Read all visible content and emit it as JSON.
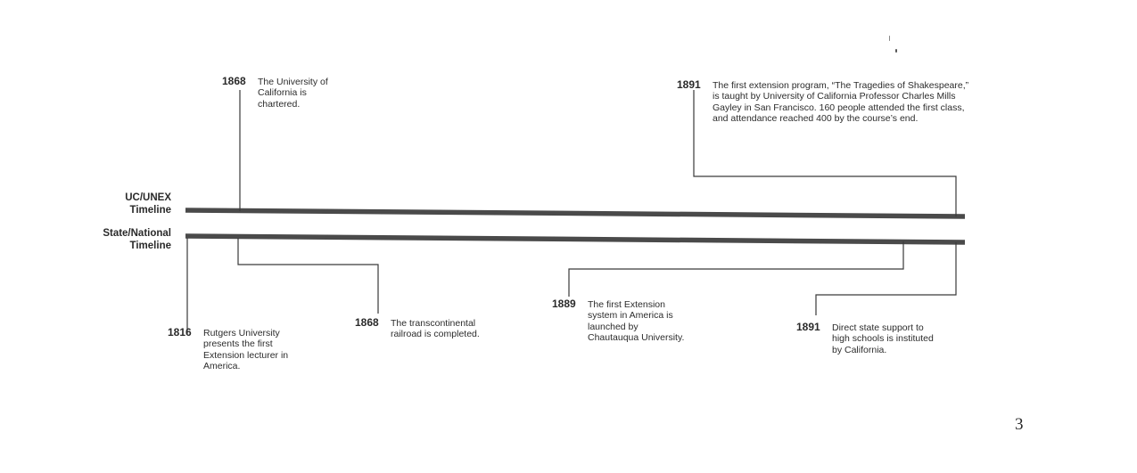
{
  "timelines": {
    "uc_unex": "UC/UNEX\nTimeline",
    "state_national": "State/National\nTimeline"
  },
  "events": {
    "uc_1868": {
      "year": "1868",
      "text": "The University of California is chartered."
    },
    "uc_1891": {
      "year": "1891",
      "text": "The first extension program, “The Tragedies of Shakespeare,” is taught by University of California Professor Charles Mills Gayley in San Francisco. 160 people attended the first class, and attendance reached 400 by the course’s end."
    },
    "state_1816": {
      "year": "1816",
      "text": "Rutgers University presents the first Extension lecturer in America."
    },
    "state_1868": {
      "year": "1868",
      "text": "The transcontinental railroad is completed."
    },
    "state_1889": {
      "year": "1889",
      "text": "The first Extension system in America is launched by Chautauqua University."
    },
    "state_1891": {
      "year": "1891",
      "text": "Direct state support to high schools is instituted by California."
    }
  },
  "page_number": "3"
}
